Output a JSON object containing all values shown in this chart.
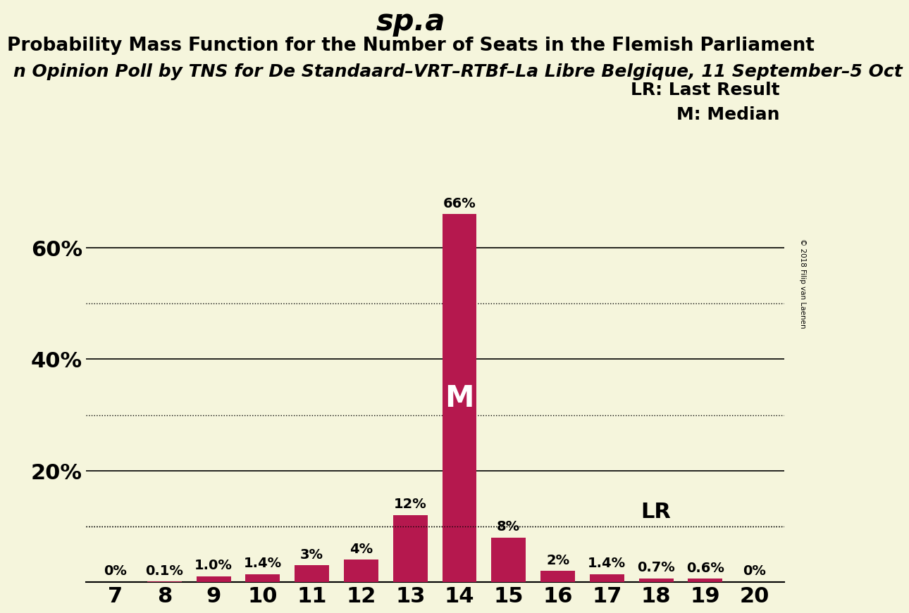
{
  "title": "sp.a",
  "subtitle": "Probability Mass Function for the Number of Seats in the Flemish Parliament",
  "poll_label": "n Opinion Poll by TNS for De Standaard–VRT–RTBf–La Libre Belgique, 11 September–5 Oct",
  "copyright": "© 2018 Filip van Laenen",
  "categories": [
    7,
    8,
    9,
    10,
    11,
    12,
    13,
    14,
    15,
    16,
    17,
    18,
    19,
    20
  ],
  "values": [
    0.0,
    0.1,
    1.0,
    1.4,
    3.0,
    4.0,
    12.0,
    66.0,
    8.0,
    2.0,
    1.4,
    0.7,
    0.6,
    0.0
  ],
  "bar_labels": [
    "0%",
    "0.1%",
    "1.0%",
    "1.4%",
    "3%",
    "4%",
    "12%",
    "66%",
    "8%",
    "2%",
    "1.4%",
    "0.7%",
    "0.6%",
    "0%"
  ],
  "bar_color": "#b5184e",
  "background_color": "#f5f5dc",
  "median_seat": 14,
  "lr_seat": 18,
  "lr_value": 10.0,
  "ylim": [
    0,
    70
  ],
  "yticks": [
    20,
    40,
    60
  ],
  "ytick_labels": [
    "20%",
    "40%",
    "60%"
  ],
  "solid_gridlines": [
    20,
    40,
    60
  ],
  "dotted_gridlines": [
    10,
    30,
    50
  ],
  "title_fontsize": 30,
  "subtitle_fontsize": 19,
  "poll_fontsize": 18,
  "bar_label_fontsize": 14,
  "ytick_fontsize": 22,
  "xtick_fontsize": 22,
  "annotation_fontsize": 22,
  "legend_fontsize": 18
}
